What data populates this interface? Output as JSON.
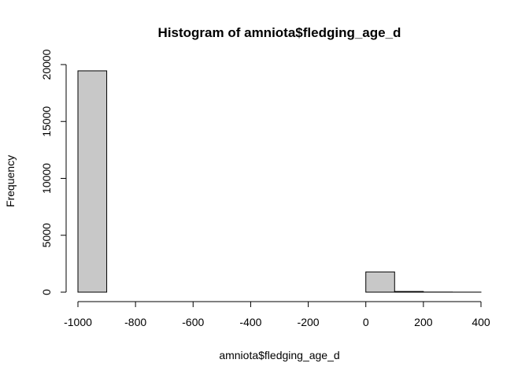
{
  "chart_data": {
    "type": "bar",
    "title": "Histogram of amniota$fledging_age_d",
    "xlabel": "amniota$fledging_age_d",
    "ylabel": "Frequency",
    "xlim": [
      -1000,
      400
    ],
    "ylim": [
      0,
      20000
    ],
    "x_ticks": [
      "-1000",
      "-800",
      "-600",
      "-400",
      "-200",
      "0",
      "200",
      "400"
    ],
    "y_ticks": [
      "0",
      "5000",
      "10000",
      "15000",
      "20000"
    ],
    "bins": [
      {
        "start": -1000,
        "end": -900,
        "count": 19450
      },
      {
        "start": -900,
        "end": -800,
        "count": 0
      },
      {
        "start": -800,
        "end": -700,
        "count": 0
      },
      {
        "start": -700,
        "end": -600,
        "count": 0
      },
      {
        "start": -600,
        "end": -500,
        "count": 0
      },
      {
        "start": -500,
        "end": -400,
        "count": 0
      },
      {
        "start": -400,
        "end": -300,
        "count": 0
      },
      {
        "start": -300,
        "end": -200,
        "count": 0
      },
      {
        "start": -200,
        "end": -100,
        "count": 0
      },
      {
        "start": -100,
        "end": 0,
        "count": 0
      },
      {
        "start": 0,
        "end": 100,
        "count": 1780
      },
      {
        "start": 100,
        "end": 200,
        "count": 60
      },
      {
        "start": 200,
        "end": 300,
        "count": 10
      },
      {
        "start": 300,
        "end": 400,
        "count": 3
      }
    ],
    "bar_fill": "#c8c8c8",
    "bar_stroke": "#000000",
    "grid": false,
    "legend": "none"
  }
}
